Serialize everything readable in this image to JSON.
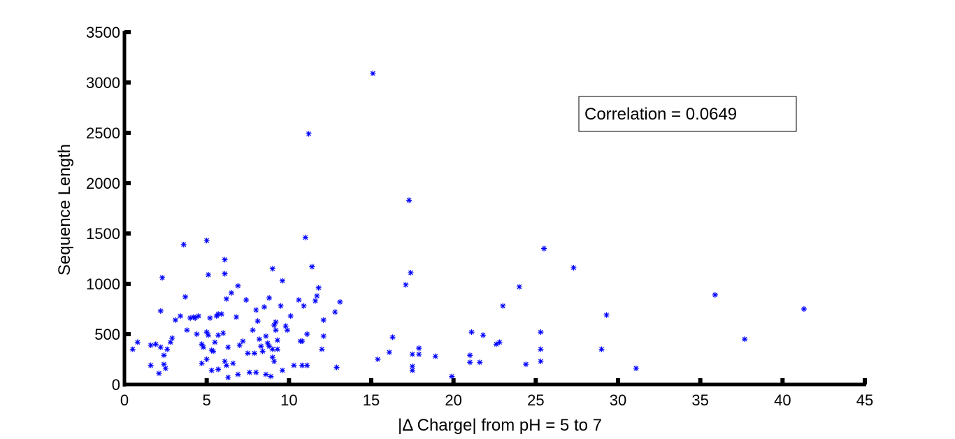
{
  "chart_data": {
    "type": "scatter",
    "title": "",
    "xlabel": "|Δ Charge| from pH = 5 to 7",
    "ylabel": "Sequence Length",
    "xlim": [
      0,
      45
    ],
    "ylim": [
      0,
      3500
    ],
    "xticks": [
      "0",
      "5",
      "10",
      "15",
      "20",
      "25",
      "30",
      "35",
      "40",
      "45"
    ],
    "yticks": [
      "0",
      "500",
      "1000",
      "1500",
      "2000",
      "2500",
      "3000",
      "3500"
    ],
    "grid": false,
    "marker": "asterisk",
    "marker_color": "#0000ff",
    "annotation": "Correlation =  0.0649",
    "points": [
      [
        0.5,
        350
      ],
      [
        0.8,
        420
      ],
      [
        1.6,
        390
      ],
      [
        1.6,
        190
      ],
      [
        1.9,
        400
      ],
      [
        2.1,
        110
      ],
      [
        2.2,
        370
      ],
      [
        2.2,
        730
      ],
      [
        2.3,
        1060
      ],
      [
        2.4,
        290
      ],
      [
        2.4,
        200
      ],
      [
        2.5,
        160
      ],
      [
        2.6,
        350
      ],
      [
        2.8,
        420
      ],
      [
        2.9,
        460
      ],
      [
        3.1,
        640
      ],
      [
        3.4,
        680
      ],
      [
        3.6,
        1390
      ],
      [
        3.7,
        870
      ],
      [
        3.8,
        540
      ],
      [
        4.0,
        660
      ],
      [
        4.2,
        670
      ],
      [
        4.3,
        660
      ],
      [
        4.4,
        500
      ],
      [
        4.5,
        680
      ],
      [
        4.7,
        210
      ],
      [
        4.7,
        400
      ],
      [
        4.8,
        370
      ],
      [
        5.0,
        1430
      ],
      [
        5.0,
        520
      ],
      [
        5.0,
        250
      ],
      [
        5.1,
        1090
      ],
      [
        5.1,
        490
      ],
      [
        5.2,
        660
      ],
      [
        5.3,
        340
      ],
      [
        5.3,
        140
      ],
      [
        5.4,
        330
      ],
      [
        5.5,
        420
      ],
      [
        5.6,
        680
      ],
      [
        5.7,
        150
      ],
      [
        5.7,
        700
      ],
      [
        5.7,
        490
      ],
      [
        5.9,
        700
      ],
      [
        6.0,
        510
      ],
      [
        6.1,
        1240
      ],
      [
        6.1,
        1100
      ],
      [
        6.1,
        230
      ],
      [
        6.2,
        850
      ],
      [
        6.2,
        190
      ],
      [
        6.3,
        70
      ],
      [
        6.3,
        370
      ],
      [
        6.5,
        910
      ],
      [
        6.6,
        210
      ],
      [
        6.8,
        670
      ],
      [
        6.9,
        980
      ],
      [
        6.9,
        100
      ],
      [
        7.0,
        390
      ],
      [
        7.2,
        430
      ],
      [
        7.4,
        840
      ],
      [
        7.5,
        310
      ],
      [
        7.6,
        120
      ],
      [
        7.8,
        540
      ],
      [
        7.9,
        310
      ],
      [
        8.0,
        120
      ],
      [
        8.0,
        740
      ],
      [
        8.1,
        630
      ],
      [
        8.2,
        450
      ],
      [
        8.3,
        380
      ],
      [
        8.4,
        330
      ],
      [
        8.5,
        770
      ],
      [
        8.6,
        480
      ],
      [
        8.6,
        100
      ],
      [
        8.7,
        410
      ],
      [
        8.8,
        860
      ],
      [
        8.8,
        380
      ],
      [
        8.9,
        80
      ],
      [
        9.0,
        270
      ],
      [
        9.0,
        350
      ],
      [
        9.0,
        1150
      ],
      [
        9.1,
        230
      ],
      [
        9.1,
        590
      ],
      [
        9.2,
        620
      ],
      [
        9.2,
        540
      ],
      [
        9.3,
        440
      ],
      [
        9.3,
        350
      ],
      [
        9.5,
        780
      ],
      [
        9.6,
        140
      ],
      [
        9.6,
        1030
      ],
      [
        9.8,
        580
      ],
      [
        9.9,
        540
      ],
      [
        10.1,
        680
      ],
      [
        10.3,
        190
      ],
      [
        10.6,
        840
      ],
      [
        10.7,
        430
      ],
      [
        10.8,
        430
      ],
      [
        10.8,
        190
      ],
      [
        10.9,
        780
      ],
      [
        11.0,
        1460
      ],
      [
        11.1,
        190
      ],
      [
        11.1,
        500
      ],
      [
        11.2,
        2490
      ],
      [
        11.4,
        1170
      ],
      [
        11.6,
        830
      ],
      [
        11.7,
        880
      ],
      [
        11.8,
        960
      ],
      [
        12.0,
        350
      ],
      [
        12.1,
        480
      ],
      [
        12.1,
        640
      ],
      [
        12.8,
        720
      ],
      [
        12.9,
        170
      ],
      [
        13.1,
        820
      ],
      [
        15.1,
        3090
      ],
      [
        15.4,
        250
      ],
      [
        16.1,
        320
      ],
      [
        16.3,
        470
      ],
      [
        17.1,
        990
      ],
      [
        17.3,
        1830
      ],
      [
        17.4,
        1110
      ],
      [
        17.5,
        180
      ],
      [
        17.5,
        140
      ],
      [
        17.5,
        300
      ],
      [
        17.9,
        360
      ],
      [
        17.9,
        300
      ],
      [
        18.9,
        280
      ],
      [
        19.9,
        80
      ],
      [
        21.0,
        290
      ],
      [
        21.0,
        220
      ],
      [
        21.1,
        520
      ],
      [
        21.6,
        220
      ],
      [
        21.8,
        490
      ],
      [
        22.6,
        400
      ],
      [
        22.8,
        420
      ],
      [
        23.0,
        780
      ],
      [
        24.0,
        970
      ],
      [
        24.4,
        200
      ],
      [
        25.3,
        520
      ],
      [
        25.3,
        350
      ],
      [
        25.3,
        230
      ],
      [
        25.5,
        1350
      ],
      [
        27.3,
        1160
      ],
      [
        29.0,
        350
      ],
      [
        29.3,
        690
      ],
      [
        31.1,
        160
      ],
      [
        35.9,
        890
      ],
      [
        37.7,
        450
      ],
      [
        41.3,
        750
      ]
    ]
  }
}
